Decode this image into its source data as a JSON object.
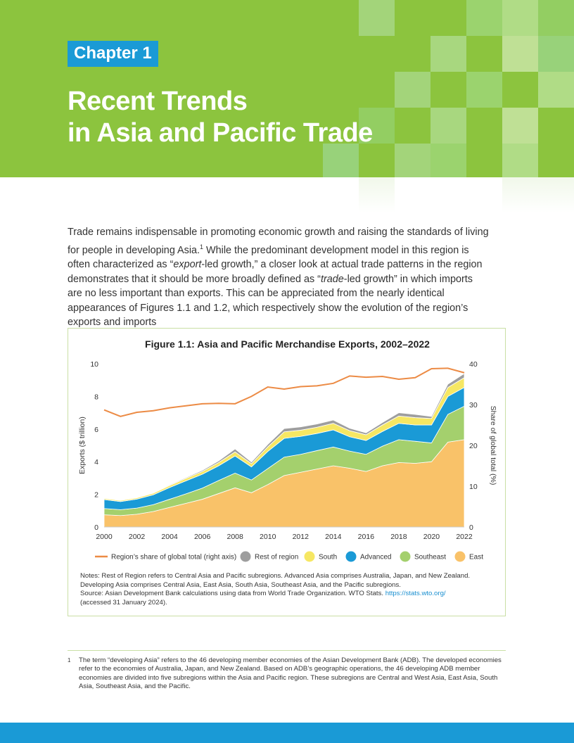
{
  "header": {
    "chapter": "Chapter 1",
    "title_line1": "Recent Trends",
    "title_line2": "in Asia and Pacific Trade"
  },
  "body": {
    "p1": "Trade remains indispensable in promoting economic growth and raising the standards of living for people in developing Asia.",
    "p1_ref": "1",
    "p2": " While the predominant development model in this region is often characterized as “",
    "p2_em": "export",
    "p3": "-led growth,” a closer look at actual trade patterns in the region demonstrates that it should be more broadly defined as “",
    "p3_em": "trade",
    "p4": "-led growth” in which imports are no less important than exports. This can be appreciated from the nearly identical appearances of Figures 1.1 and 1.2, which respectively show the evolution of the region’s exports and imports"
  },
  "figure": {
    "title": "Figure 1.1: Asia and Pacific Merchandise Exports, 2002–2022",
    "notes_line1": "Notes: Rest of Region refers to Central Asia and Pacific subregions. Advanced Asia comprises Australia, Japan, and New Zealand.",
    "notes_line2": "Developing Asia comprises Central Asia, East Asia, South Asia, Southeast Asia, and the Pacific subregions.",
    "source_text": "Source: Asian Development Bank calculations using data from World Trade Organization. WTO Stats. ",
    "source_link": "https://stats.wto.org/",
    "accessed": "(accessed 31 January 2024)."
  },
  "chart_data": {
    "type": "area",
    "title": "Figure 1.1: Asia and Pacific Merchandise Exports, 2002–2022",
    "xlabel": "",
    "ylabel": "Exports ($ trillion)",
    "y2label": "Share of global total (%)",
    "ylim": [
      0,
      10
    ],
    "y2lim": [
      0,
      40
    ],
    "xlim": [
      2000,
      2022
    ],
    "x_ticks": [
      "2000",
      "2002",
      "2004",
      "2006",
      "2008",
      "2010",
      "2012",
      "2014",
      "2016",
      "2018",
      "2020",
      "2022"
    ],
    "y_ticks": [
      "0",
      "2",
      "4",
      "6",
      "8",
      "10"
    ],
    "y2_ticks": [
      "0",
      "10",
      "20",
      "30",
      "40"
    ],
    "x": [
      2000,
      2001,
      2002,
      2003,
      2004,
      2005,
      2006,
      2007,
      2008,
      2009,
      2010,
      2011,
      2012,
      2013,
      2014,
      2015,
      2016,
      2017,
      2018,
      2019,
      2020,
      2021,
      2022
    ],
    "stacked_series": [
      {
        "name": "East",
        "color": "#f9c269",
        "values": [
          0.75,
          0.7,
          0.78,
          0.95,
          1.2,
          1.45,
          1.7,
          2.05,
          2.4,
          2.1,
          2.6,
          3.15,
          3.35,
          3.55,
          3.75,
          3.6,
          3.4,
          3.75,
          3.95,
          3.9,
          4.0,
          5.2,
          5.35
        ]
      },
      {
        "name": "Southeast",
        "color": "#a4d06d",
        "values": [
          0.38,
          0.36,
          0.38,
          0.42,
          0.5,
          0.58,
          0.68,
          0.8,
          0.9,
          0.78,
          0.98,
          1.13,
          1.1,
          1.13,
          1.15,
          1.05,
          1.05,
          1.2,
          1.4,
          1.35,
          1.15,
          1.7,
          2.05
        ]
      },
      {
        "name": "Advanced",
        "color": "#1a9ad6",
        "values": [
          0.55,
          0.5,
          0.55,
          0.6,
          0.72,
          0.8,
          0.85,
          0.9,
          1.05,
          0.8,
          1.05,
          1.15,
          1.1,
          1.05,
          1.05,
          0.88,
          0.85,
          0.9,
          1.0,
          1.0,
          1.1,
          1.1,
          1.15
        ]
      },
      {
        "name": "South",
        "color": "#f6e763",
        "values": [
          0.07,
          0.07,
          0.08,
          0.1,
          0.12,
          0.15,
          0.17,
          0.2,
          0.25,
          0.2,
          0.28,
          0.4,
          0.38,
          0.38,
          0.4,
          0.37,
          0.35,
          0.4,
          0.45,
          0.45,
          0.4,
          0.55,
          0.6
        ]
      },
      {
        "name": "Rest of region",
        "color": "#9e9e9e",
        "values": [
          0.02,
          0.02,
          0.02,
          0.03,
          0.04,
          0.05,
          0.07,
          0.1,
          0.18,
          0.1,
          0.15,
          0.2,
          0.2,
          0.2,
          0.2,
          0.15,
          0.12,
          0.15,
          0.2,
          0.2,
          0.12,
          0.2,
          0.25
        ]
      }
    ],
    "line_series": {
      "name": "Region’s share of global total (right axis)",
      "color": "#ec8b45",
      "axis": "right",
      "values": [
        28.7,
        27.1,
        28.1,
        28.5,
        29.2,
        29.7,
        30.2,
        30.3,
        30.2,
        32.0,
        34.3,
        33.8,
        34.4,
        34.6,
        35.2,
        37.0,
        36.7,
        36.9,
        36.2,
        36.6,
        38.8,
        38.9,
        37.8
      ]
    },
    "legend": [
      "Region’s share of global total (right axis)",
      "Rest of region",
      "South",
      "Advanced",
      "Southeast",
      "East"
    ],
    "legend_position": "bottom"
  },
  "footnote": {
    "number": "1",
    "text": "The term “developing Asia” refers to the 46 developing member economies of the Asian Development Bank (ADB). The developed economies refer to the economies of Australia, Japan, and New Zealand. Based on ADB’s geographic operations, the 46 developing ADB member economies are divided into five subregions within the Asia and Pacific region. These subregions are Central and West Asia, East Asia, South Asia, Southeast Asia, and the Pacific."
  }
}
